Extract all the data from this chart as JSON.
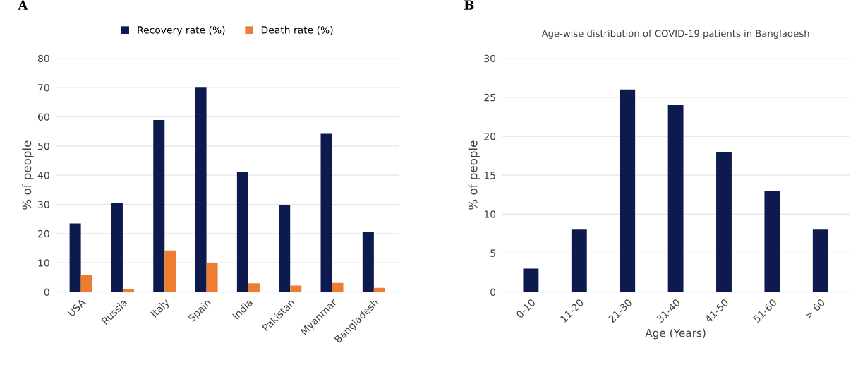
{
  "chart_data": [
    {
      "type": "bar",
      "annotations": [
        "A"
      ],
      "ylabel": "% of people",
      "categories": [
        "USA",
        "Russia",
        "Italy",
        "Spain",
        "India",
        "Pakistan",
        "Myanmar",
        "Bangladesh"
      ],
      "series": [
        {
          "name": "Recovery rate (%)",
          "color": "#0c1a4d",
          "values": [
            23.5,
            30.6,
            58.9,
            70.2,
            41,
            29.9,
            54.2,
            20.5
          ]
        },
        {
          "name": "Death rate (%)",
          "color": "#ed7d31",
          "values": [
            5.8,
            0.9,
            14.2,
            9.9,
            3,
            2.2,
            3.1,
            1.4
          ]
        }
      ],
      "ylim": [
        0,
        80
      ],
      "yticks": [
        0,
        10,
        20,
        30,
        40,
        50,
        60,
        70,
        80
      ],
      "grid": "y",
      "legend": "top"
    },
    {
      "type": "bar",
      "annotations": [
        "B"
      ],
      "title": "Age-wise distribution of COVID-19 patients in Bangladesh",
      "xlabel": "Age (Years)",
      "ylabel": "% of people",
      "categories": [
        "0-10",
        "11-20",
        "21-30",
        "31-40",
        "41-50",
        "51-60",
        "> 60"
      ],
      "series": [
        {
          "color": "#0c1a4d",
          "values": [
            3,
            8,
            26,
            24,
            18,
            13,
            8
          ]
        }
      ],
      "ylim": [
        0,
        30
      ],
      "yticks": [
        0,
        5,
        10,
        15,
        20,
        25,
        30
      ],
      "grid": "y"
    }
  ]
}
